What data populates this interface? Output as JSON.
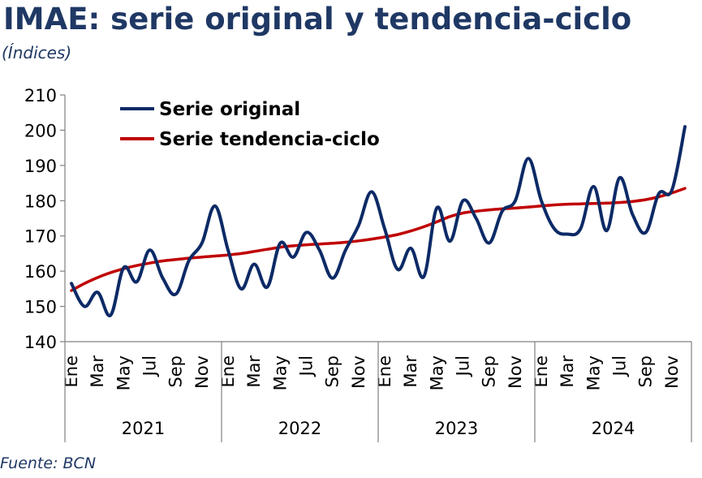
{
  "title": "IMAE: serie original y tendencia-ciclo",
  "subtitle": "(Índices)",
  "source": "Fuente: BCN",
  "colors": {
    "title": "#1f3864",
    "original": "#0c2a66",
    "trend": "#c00000"
  },
  "chart_data": {
    "type": "line",
    "ylim": [
      140,
      210
    ],
    "yticks": [
      140,
      150,
      160,
      170,
      180,
      190,
      200,
      210
    ],
    "month_labels": [
      "Ene",
      "Mar",
      "May",
      "Jul",
      "Sep",
      "Nov"
    ],
    "years": [
      "2021",
      "2022",
      "2023",
      "2024"
    ],
    "legend_position": "top-left",
    "grid": false,
    "series": [
      {
        "name": "Serie original",
        "color": "#0c2a66",
        "values": [
          156.5,
          150,
          154,
          147.5,
          161,
          157,
          166,
          158,
          153.5,
          163,
          168,
          178.5,
          166,
          155,
          162,
          155.5,
          168,
          164,
          171,
          166,
          158,
          166,
          173,
          182.5,
          172,
          160.5,
          166.5,
          158.5,
          178,
          168.5,
          180,
          175,
          168,
          177,
          180,
          192,
          180,
          172,
          170.5,
          172,
          184,
          171.5,
          186.5,
          176,
          171,
          182,
          183,
          201
        ]
      },
      {
        "name": "Serie tendencia-ciclo",
        "color": "#c00000",
        "values": [
          154.5,
          156.5,
          158.2,
          159.6,
          160.7,
          161.6,
          162.3,
          162.9,
          163.3,
          163.7,
          164,
          164.3,
          164.6,
          165,
          165.6,
          166.2,
          166.8,
          167.2,
          167.5,
          167.7,
          167.9,
          168.2,
          168.6,
          169.1,
          169.7,
          170.4,
          171.4,
          172.6,
          174,
          175.5,
          176.5,
          177,
          177.4,
          177.7,
          177.9,
          178.2,
          178.5,
          178.8,
          179,
          179.1,
          179.2,
          179.3,
          179.5,
          179.8,
          180.3,
          181.1,
          182.2,
          183.5
        ]
      }
    ]
  }
}
